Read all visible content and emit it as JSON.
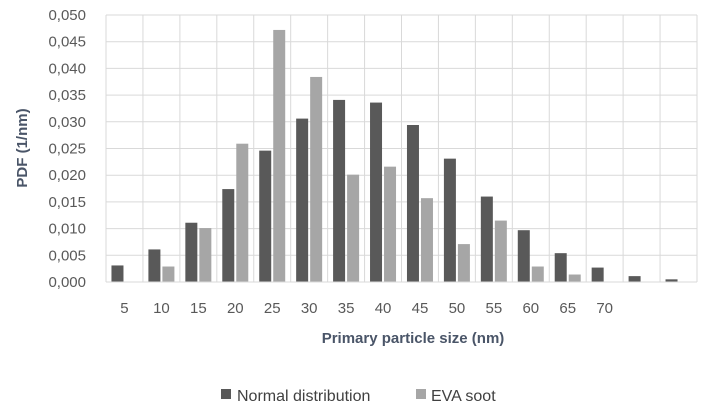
{
  "chart_data": {
    "type": "bar",
    "title": "",
    "xlabel": "Primary particle size (nm)",
    "ylabel": "PDF (1/nm)",
    "ylim": [
      0,
      0.05
    ],
    "y_ticks": [
      "0,000",
      "0,005",
      "0,010",
      "0,015",
      "0,020",
      "0,025",
      "0,030",
      "0,035",
      "0,040",
      "0,045",
      "0,050"
    ],
    "categories": [
      "5",
      "10",
      "15",
      "20",
      "25",
      "30",
      "35",
      "40",
      "45",
      "50",
      "55",
      "60",
      "65",
      "70",
      "",
      ""
    ],
    "grid": true,
    "legend_position": "bottom",
    "series": [
      {
        "name": "Normal distribution",
        "color": "#595959",
        "values": [
          0.0031,
          0.0061,
          0.0111,
          0.0174,
          0.0246,
          0.0306,
          0.0341,
          0.0336,
          0.0294,
          0.0231,
          0.016,
          0.0097,
          0.0054,
          0.0027,
          0.0011,
          0.0005
        ]
      },
      {
        "name": "EVA soot",
        "color": "#a6a6a6",
        "values": [
          0.0,
          0.0029,
          0.0101,
          0.0259,
          0.0472,
          0.0384,
          0.0201,
          0.0216,
          0.0157,
          0.0071,
          0.0115,
          0.0029,
          0.0014,
          0.0,
          0.0,
          0.0
        ]
      }
    ]
  }
}
